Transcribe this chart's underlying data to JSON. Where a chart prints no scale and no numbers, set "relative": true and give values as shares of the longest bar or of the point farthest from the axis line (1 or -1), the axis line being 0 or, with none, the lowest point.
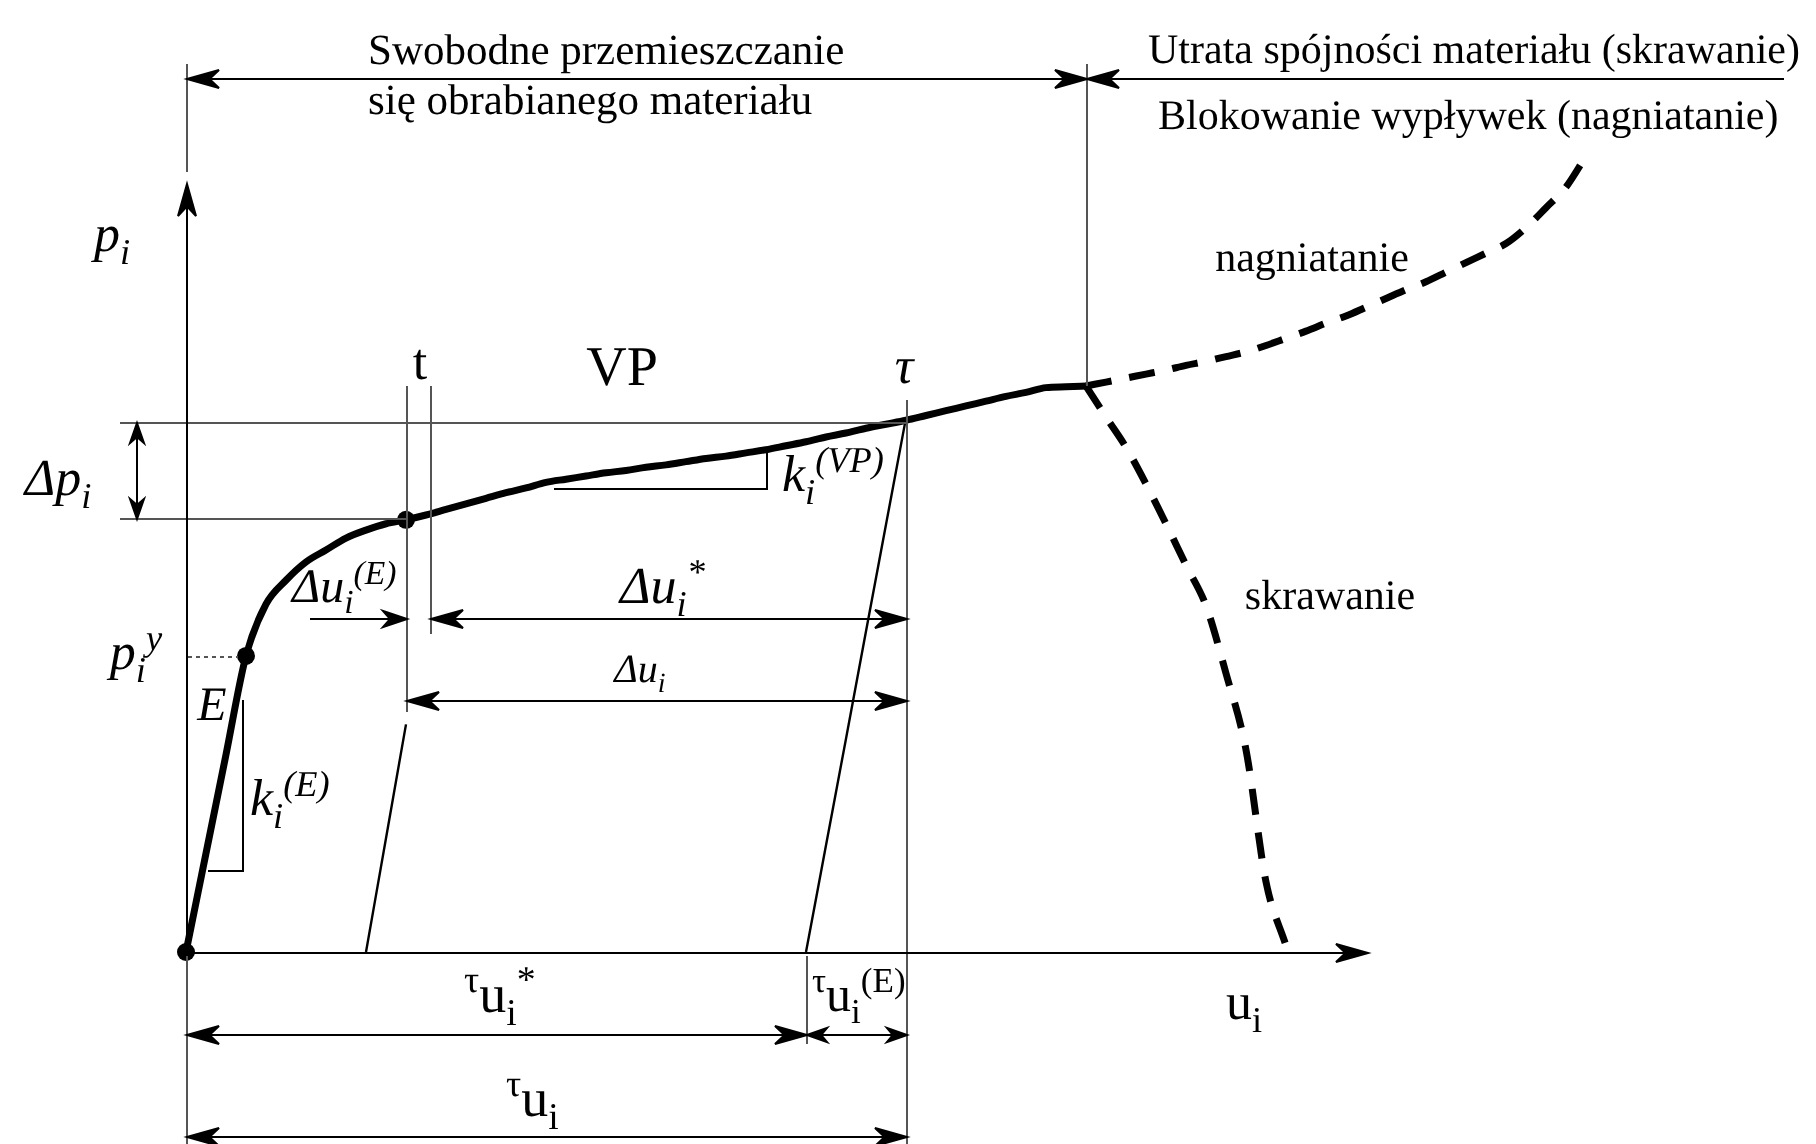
{
  "chart_data": {
    "type": "line",
    "relative": true,
    "xlabel": "u$_{i}$",
    "ylabel": "p$_{i}$",
    "marker": "none",
    "line_style": "solid",
    "categories": [
      null,
      null,
      null,
      null,
      null,
      null,
      null,
      null,
      null,
      null,
      null,
      null,
      null,
      null,
      null,
      null,
      null,
      null,
      null,
      null,
      null,
      null,
      null,
      null,
      null,
      null,
      null,
      null,
      null,
      null,
      null,
      null,
      null,
      null,
      null,
      null,
      null,
      null,
      null,
      null,
      null,
      null,
      null,
      null,
      null,
      null,
      null,
      null,
      null,
      null,
      null,
      null,
      null,
      null,
      null,
      null,
      null,
      null,
      null,
      null,
      null,
      null,
      null,
      null,
      null,
      null,
      null,
      null,
      null,
      null,
      null
    ],
    "annotations": [
      "Swobodne przemieszczanie się obrabianego materiału",
      "Utrata spójności materiału (skrawanie)",
      "Blokowanie wypływek (nagniatanie)",
      "Δp$_{i}$",
      "p$_{i}$$^{y}$",
      "E",
      "k$_{i}$$^{(E)}$",
      "Δu$_{i}$$^{(E)}$",
      "t",
      "VP",
      "τ",
      "k$_{i}$$^{(VP)}$",
      "Δu$_{i}$$^{*}$",
      "Δu$_{i}$",
      "$^{τ}$u$_{i}$$^{*}$",
      "$^{τ}$u$_{i}$$^{(E)}$",
      "$^{τ}$u$_{i}$"
    ],
    "series": [
      {
        "color": "#000000",
        "values": [
          0,
          0.124,
          0.248,
          0.372,
          0.437,
          0.467,
          0.49,
          0.505,
          0.52,
          0.53,
          0.538,
          0.543,
          0.549,
          0.556,
          0.563,
          0.57,
          0.577,
          0.583,
          0.59,
          0.594,
          0.598,
          0.602,
          0.605,
          0.609,
          0.612,
          0.616,
          0.62,
          0.623,
          0.627,
          0.631,
          0.636,
          0.641,
          0.647,
          0.652,
          0.658,
          0.663,
          0.668,
          0.674,
          0.68,
          0.686,
          0.692,
          0.698,
          0.703,
          0.709,
          0.71,
          0.711,
          null,
          null,
          null,
          null,
          null,
          null,
          null,
          null,
          null,
          null,
          null,
          null,
          null,
          null,
          null,
          null,
          null,
          null,
          null,
          null,
          null,
          null,
          null,
          null,
          null
        ]
      },
      {
        "name": "nagniatanie",
        "color": "#000000",
        "line_style": "dashed",
        "values": [
          null,
          null,
          null,
          null,
          null,
          null,
          null,
          null,
          null,
          null,
          null,
          null,
          null,
          null,
          null,
          null,
          null,
          null,
          null,
          null,
          null,
          null,
          null,
          null,
          null,
          null,
          null,
          null,
          null,
          null,
          null,
          null,
          null,
          null,
          null,
          null,
          null,
          null,
          null,
          null,
          null,
          null,
          null,
          null,
          null,
          0.711,
          0.716,
          0.721,
          0.726,
          0.731,
          0.737,
          0.742,
          0.748,
          0.754,
          0.762,
          0.771,
          0.78,
          0.79,
          0.799,
          0.81,
          0.821,
          0.832,
          0.842,
          0.854,
          0.866,
          0.878,
          0.89,
          0.91,
          0.935,
          0.961,
          1
        ]
      },
      {
        "name": "skrawanie",
        "color": "#000000",
        "line_style": "dashed",
        "values": [
          null,
          null,
          null,
          null,
          null,
          null,
          null,
          null,
          null,
          null,
          null,
          null,
          null,
          null,
          null,
          null,
          null,
          null,
          null,
          null,
          null,
          null,
          null,
          null,
          null,
          null,
          null,
          null,
          null,
          null,
          null,
          null,
          null,
          null,
          null,
          null,
          null,
          null,
          null,
          null,
          null,
          null,
          null,
          null,
          null,
          0.711,
          0.672,
          0.634,
          0.588,
          0.538,
          0.486,
          0.435,
          0.35,
          0.254,
          0.088,
          0.008,
          null,
          null,
          null,
          null,
          null,
          null,
          null,
          null,
          null,
          null,
          null,
          null,
          null,
          null,
          null
        ]
      },
      {
        "color": "#000000",
        "values": [
          null,
          null,
          null,
          null,
          null,
          null,
          null,
          null,
          null,
          0,
          0.143,
          0.286,
          null,
          null,
          null,
          null,
          null,
          null,
          null,
          null,
          null,
          null,
          null,
          null,
          null,
          null,
          null,
          null,
          null,
          null,
          null,
          null,
          null,
          null,
          null,
          null,
          null,
          null,
          null,
          null,
          null,
          null,
          null,
          null,
          null,
          null,
          null,
          null,
          null,
          null,
          null,
          null,
          null,
          null,
          null,
          null,
          null,
          null,
          null,
          null,
          null,
          null,
          null,
          null,
          null,
          null,
          null,
          null,
          null,
          null,
          null
        ]
      },
      {
        "color": "#000000",
        "values": [
          null,
          null,
          null,
          null,
          null,
          null,
          null,
          null,
          null,
          null,
          null,
          null,
          null,
          null,
          null,
          null,
          null,
          null,
          null,
          null,
          null,
          null,
          null,
          null,
          null,
          null,
          null,
          null,
          null,
          null,
          null,
          0,
          0.134,
          0.268,
          0.403,
          0.537,
          0.671,
          null,
          null,
          null,
          null,
          null,
          null,
          null,
          null,
          null,
          null,
          null,
          null,
          null,
          null,
          null,
          null,
          null,
          null,
          null,
          null,
          null,
          null,
          null,
          null,
          null,
          null,
          null,
          null,
          null,
          null,
          null,
          null,
          null,
          null
        ]
      },
      {
        "color": "#000000",
        "marker": "circle",
        "values": [
          0,
          null,
          null,
          0.372,
          null,
          null,
          null,
          null,
          null,
          null,
          null,
          0.543,
          null,
          null,
          null,
          null,
          null,
          null,
          null,
          null,
          null,
          null,
          null,
          null,
          null,
          null,
          null,
          null,
          null,
          null,
          null,
          null,
          null,
          null,
          null,
          null,
          null,
          null,
          null,
          null,
          null,
          null,
          null,
          null,
          null,
          null,
          null,
          null,
          null,
          null,
          null,
          null,
          null,
          null,
          null,
          null,
          null,
          null,
          null,
          null,
          null,
          null,
          null,
          null,
          null,
          null,
          null,
          null,
          null,
          null,
          null
        ]
      }
    ]
  }
}
